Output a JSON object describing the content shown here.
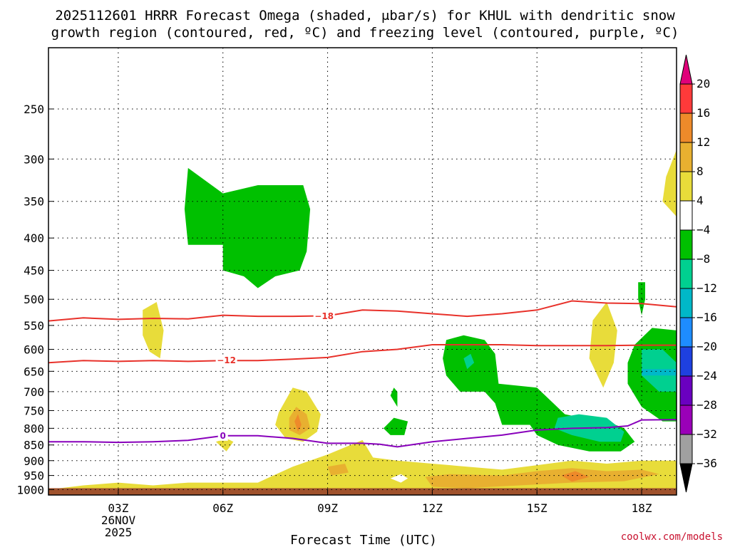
{
  "chart_data": {
    "type": "heatmap",
    "title_line1": "2025112601 HRRR Forecast Omega (shaded, μbar/s) for KHUL with dendritic snow",
    "title_line2": "growth region (contoured, red, ºC) and freezing level (contoured, purple, ºC)",
    "xlabel": "Forecast Time (UTC)",
    "x_date_label": [
      "26NOV",
      "2025"
    ],
    "x_ticks": [
      {
        "label": "03Z",
        "hour": 3
      },
      {
        "label": "06Z",
        "hour": 6
      },
      {
        "label": "09Z",
        "hour": 9
      },
      {
        "label": "12Z",
        "hour": 12
      },
      {
        "label": "15Z",
        "hour": 15
      },
      {
        "label": "18Z",
        "hour": 18
      }
    ],
    "xlim": [
      1,
      19
    ],
    "y_ticks": [
      250,
      300,
      350,
      400,
      450,
      500,
      550,
      600,
      650,
      700,
      750,
      800,
      850,
      900,
      950,
      1000
    ],
    "ylim_hpa": [
      1020,
      200
    ],
    "grid": true,
    "credit": "coolwx.com/models",
    "colorbar": {
      "labels": [
        "20",
        "16",
        "12",
        "8",
        "4",
        "−4",
        "−8",
        "−12",
        "−16",
        "−20",
        "−24",
        "−28",
        "−32",
        "−36"
      ],
      "colors": [
        "#e0007a",
        "#ff3a3a",
        "#ee8a2a",
        "#e8b030",
        "#e8dc3a",
        "#ffffff",
        "#00c000",
        "#00d090",
        "#00b8c8",
        "#1e8cff",
        "#1e40e0",
        "#6a00c0",
        "#9a00b8",
        "#a0a0a0",
        "#000000"
      ],
      "top_arrow_color": "#e0007a",
      "bottom_arrow_color": "#000000"
    },
    "omega_regions": [
      {
        "name": "green",
        "color": "#00c000",
        "points": [
          [
            5.0,
            310
          ],
          [
            6.0,
            340
          ],
          [
            7.0,
            330
          ],
          [
            8.3,
            330
          ],
          [
            8.5,
            360
          ],
          [
            8.4,
            420
          ],
          [
            8.2,
            450
          ],
          [
            7.5,
            460
          ],
          [
            7.0,
            480
          ],
          [
            6.6,
            460
          ],
          [
            6.0,
            450
          ],
          [
            6.0,
            410
          ],
          [
            5.0,
            410
          ],
          [
            4.9,
            360
          ]
        ]
      },
      {
        "name": "yellow",
        "color": "#e8dc3a",
        "points": [
          [
            3.7,
            520
          ],
          [
            4.1,
            505
          ],
          [
            4.3,
            560
          ],
          [
            4.2,
            620
          ],
          [
            3.9,
            605
          ],
          [
            3.7,
            570
          ]
        ]
      },
      {
        "name": "yellow",
        "color": "#e8dc3a",
        "points": [
          [
            18.7,
            320
          ],
          [
            19.0,
            290
          ],
          [
            19.0,
            370
          ],
          [
            18.6,
            350
          ]
        ]
      },
      {
        "name": "yellow",
        "color": "#e8dc3a",
        "points": [
          [
            16.6,
            540
          ],
          [
            17.0,
            505
          ],
          [
            17.3,
            560
          ],
          [
            17.2,
            630
          ],
          [
            16.9,
            690
          ],
          [
            16.5,
            620
          ]
        ]
      },
      {
        "name": "green",
        "color": "#00c000",
        "points": [
          [
            10.9,
            690
          ],
          [
            11.0,
            700
          ],
          [
            11.0,
            740
          ],
          [
            10.8,
            710
          ]
        ]
      },
      {
        "name": "green",
        "color": "#00c000",
        "points": [
          [
            10.6,
            800
          ],
          [
            10.9,
            770
          ],
          [
            11.3,
            780
          ],
          [
            11.2,
            820
          ],
          [
            10.8,
            820
          ]
        ]
      },
      {
        "name": "green",
        "color": "#00c000",
        "points": [
          [
            17.9,
            470
          ],
          [
            18.1,
            470
          ],
          [
            18.1,
            500
          ],
          [
            18.0,
            530
          ],
          [
            17.9,
            500
          ]
        ]
      },
      {
        "name": "green",
        "color": "#00c000",
        "points": [
          [
            12.4,
            580
          ],
          [
            12.9,
            570
          ],
          [
            13.5,
            580
          ],
          [
            13.8,
            610
          ],
          [
            13.9,
            680
          ],
          [
            15.0,
            690
          ],
          [
            15.8,
            760
          ],
          [
            16.3,
            770
          ],
          [
            17.0,
            780
          ],
          [
            17.5,
            800
          ],
          [
            17.8,
            840
          ],
          [
            17.4,
            870
          ],
          [
            16.5,
            870
          ],
          [
            15.6,
            850
          ],
          [
            15.0,
            820
          ],
          [
            14.8,
            790
          ],
          [
            14.0,
            790
          ],
          [
            13.8,
            730
          ],
          [
            13.5,
            700
          ],
          [
            12.8,
            700
          ],
          [
            12.4,
            660
          ],
          [
            12.3,
            620
          ]
        ]
      },
      {
        "name": "green",
        "color": "#00c000",
        "points": [
          [
            17.8,
            590
          ],
          [
            18.3,
            555
          ],
          [
            19.0,
            560
          ],
          [
            19.0,
            780
          ],
          [
            18.6,
            780
          ],
          [
            18.0,
            740
          ],
          [
            17.6,
            680
          ],
          [
            17.6,
            630
          ]
        ]
      },
      {
        "name": "teal",
        "color": "#00d090",
        "points": [
          [
            15.6,
            770
          ],
          [
            16.2,
            760
          ],
          [
            17.0,
            770
          ],
          [
            17.5,
            810
          ],
          [
            17.4,
            840
          ],
          [
            16.8,
            840
          ],
          [
            16.0,
            820
          ],
          [
            15.5,
            800
          ]
        ]
      },
      {
        "name": "teal",
        "color": "#00d090",
        "points": [
          [
            18.0,
            600
          ],
          [
            18.6,
            600
          ],
          [
            19.0,
            630
          ],
          [
            19.0,
            700
          ],
          [
            18.5,
            700
          ],
          [
            18.0,
            660
          ]
        ]
      },
      {
        "name": "cyan",
        "color": "#00b8c8",
        "points": [
          [
            18.0,
            645
          ],
          [
            19.0,
            645
          ],
          [
            19.0,
            660
          ],
          [
            18.0,
            660
          ]
        ]
      },
      {
        "name": "teal",
        "color": "#00d090",
        "points": [
          [
            12.9,
            620
          ],
          [
            13.1,
            610
          ],
          [
            13.2,
            630
          ],
          [
            13.0,
            645
          ]
        ]
      },
      {
        "name": "yellow",
        "color": "#e8dc3a",
        "points": [
          [
            7.6,
            755
          ],
          [
            8.0,
            690
          ],
          [
            8.4,
            700
          ],
          [
            8.8,
            760
          ],
          [
            8.7,
            810
          ],
          [
            8.3,
            840
          ],
          [
            7.8,
            830
          ],
          [
            7.5,
            790
          ]
        ]
      },
      {
        "name": "orange",
        "color": "#e8b030",
        "points": [
          [
            7.9,
            770
          ],
          [
            8.1,
            740
          ],
          [
            8.4,
            760
          ],
          [
            8.5,
            800
          ],
          [
            8.2,
            820
          ],
          [
            7.9,
            805
          ]
        ]
      },
      {
        "name": "dark-orange",
        "color": "#ee8a2a",
        "points": [
          [
            8.05,
            780
          ],
          [
            8.15,
            760
          ],
          [
            8.25,
            790
          ],
          [
            8.15,
            810
          ]
        ]
      },
      {
        "name": "yellow",
        "color": "#e8dc3a",
        "points": [
          [
            5.8,
            840
          ],
          [
            6.1,
            830
          ],
          [
            6.3,
            840
          ],
          [
            6.1,
            870
          ]
        ]
      },
      {
        "name": "yellow",
        "color": "#e8dc3a",
        "points": [
          [
            1.0,
            1000
          ],
          [
            2.0,
            985
          ],
          [
            3.0,
            975
          ],
          [
            4.0,
            985
          ],
          [
            5.0,
            975
          ],
          [
            6.0,
            975
          ],
          [
            7.0,
            975
          ],
          [
            8.0,
            920
          ],
          [
            9.0,
            880
          ],
          [
            10.0,
            835
          ],
          [
            10.3,
            890
          ],
          [
            11.0,
            900
          ],
          [
            12.0,
            910
          ],
          [
            13.0,
            920
          ],
          [
            14.0,
            930
          ],
          [
            15.0,
            915
          ],
          [
            16.0,
            900
          ],
          [
            17.0,
            910
          ],
          [
            18.0,
            900
          ],
          [
            19.0,
            900
          ],
          [
            19.0,
            1000
          ]
        ]
      },
      {
        "name": "orange",
        "color": "#e8b030",
        "points": [
          [
            9.0,
            920
          ],
          [
            9.5,
            910
          ],
          [
            9.6,
            940
          ],
          [
            9.1,
            950
          ]
        ]
      },
      {
        "name": "orange",
        "color": "#e8b030",
        "points": [
          [
            11.8,
            955
          ],
          [
            12.5,
            945
          ],
          [
            14.0,
            950
          ],
          [
            15.0,
            935
          ],
          [
            16.0,
            925
          ],
          [
            17.0,
            935
          ],
          [
            18.0,
            930
          ],
          [
            18.5,
            945
          ],
          [
            17.5,
            970
          ],
          [
            16.0,
            975
          ],
          [
            14.5,
            985
          ],
          [
            13.0,
            995
          ],
          [
            12.0,
            990
          ]
        ]
      },
      {
        "name": "dark-orange",
        "color": "#ee8a2a",
        "points": [
          [
            15.7,
            950
          ],
          [
            16.1,
            935
          ],
          [
            16.5,
            955
          ],
          [
            16.0,
            972
          ]
        ]
      },
      {
        "name": "white-gap",
        "color": "#ffffff",
        "points": [
          [
            10.8,
            960
          ],
          [
            11.1,
            945
          ],
          [
            11.3,
            960
          ],
          [
            11.1,
            975
          ]
        ]
      }
    ],
    "contours": [
      {
        "name": "-18",
        "color": "#e8312a",
        "label": "−18",
        "label_at": [
          8.9,
          532
        ],
        "points": [
          [
            1,
            541
          ],
          [
            2,
            535
          ],
          [
            3,
            538
          ],
          [
            4,
            536
          ],
          [
            5,
            537
          ],
          [
            6,
            530
          ],
          [
            7,
            532
          ],
          [
            8,
            532
          ],
          [
            9,
            531
          ],
          [
            10,
            520
          ],
          [
            11,
            522
          ],
          [
            12,
            527
          ],
          [
            13,
            532
          ],
          [
            14,
            527
          ],
          [
            15,
            520
          ],
          [
            16,
            503
          ],
          [
            17,
            507
          ],
          [
            18,
            508
          ],
          [
            19,
            514
          ]
        ]
      },
      {
        "name": "-12",
        "color": "#e8312a",
        "label": "−12",
        "label_at": [
          6.1,
          625
        ],
        "points": [
          [
            1,
            630
          ],
          [
            2,
            625
          ],
          [
            3,
            627
          ],
          [
            4,
            625
          ],
          [
            5,
            627
          ],
          [
            6,
            625
          ],
          [
            7,
            625
          ],
          [
            8,
            622
          ],
          [
            9,
            618
          ],
          [
            10,
            605
          ],
          [
            11,
            600
          ],
          [
            12,
            590
          ],
          [
            13,
            590
          ],
          [
            14,
            590
          ],
          [
            15,
            592
          ],
          [
            16,
            592
          ],
          [
            17,
            592
          ],
          [
            18,
            591
          ],
          [
            19,
            591
          ]
        ]
      },
      {
        "name": "0",
        "color": "#8800bb",
        "label": "0",
        "label_at": [
          6.0,
          822
        ],
        "points": [
          [
            1,
            840
          ],
          [
            2,
            840
          ],
          [
            3,
            842
          ],
          [
            4,
            840
          ],
          [
            5,
            836
          ],
          [
            6,
            822
          ],
          [
            7,
            822
          ],
          [
            8,
            830
          ],
          [
            9,
            845
          ],
          [
            10,
            845
          ],
          [
            10.5,
            848
          ],
          [
            11,
            856
          ],
          [
            12,
            840
          ],
          [
            13,
            830
          ],
          [
            14,
            820
          ],
          [
            15,
            805
          ],
          [
            16,
            800
          ],
          [
            17,
            798
          ],
          [
            17.6,
            793
          ],
          [
            18,
            776
          ],
          [
            19,
            775
          ]
        ]
      }
    ],
    "terrain": {
      "color": "#a0522d",
      "top_hpa": 995
    }
  }
}
